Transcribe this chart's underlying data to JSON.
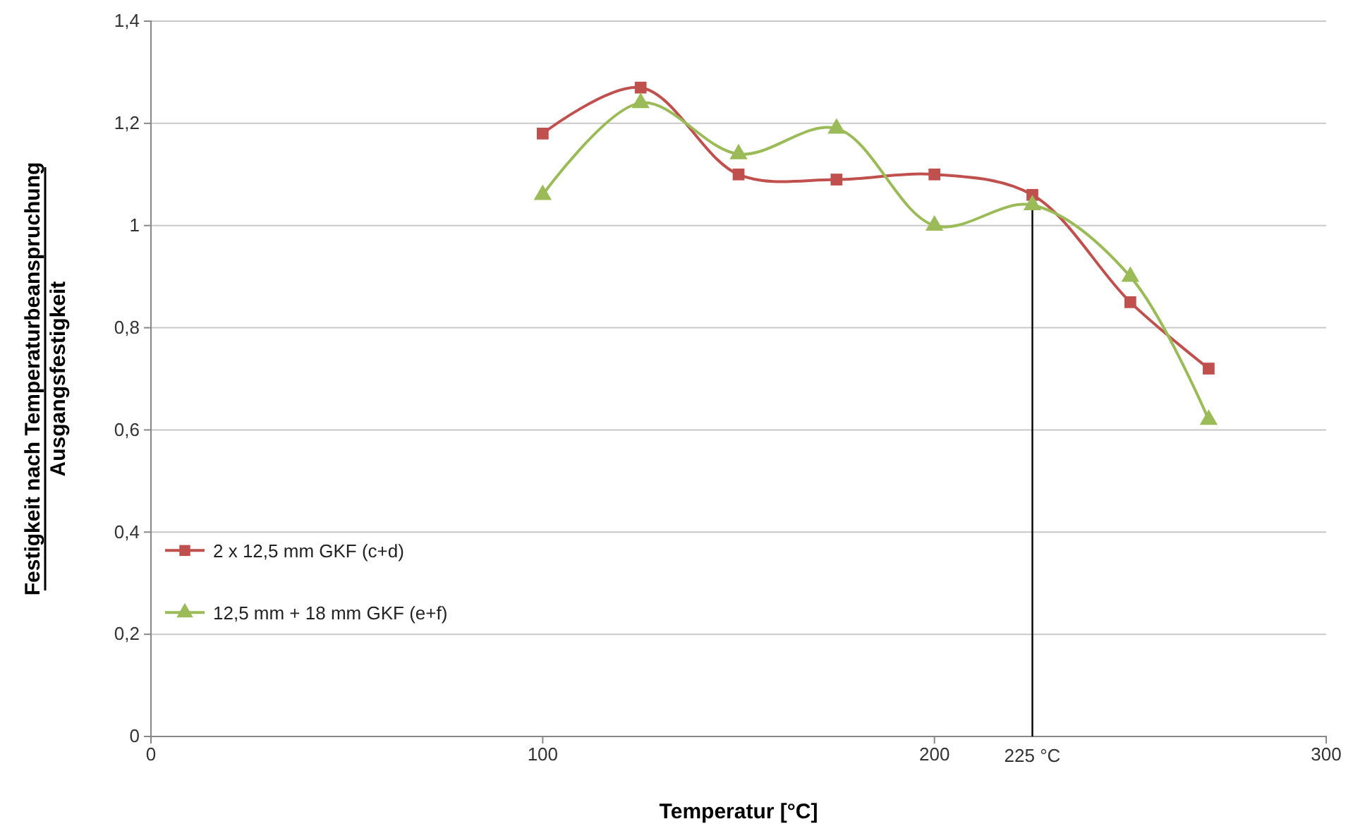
{
  "chart_data": {
    "type": "line",
    "xlabel": "Temperatur [°C]",
    "ylabel": "Festigkeit nach Temperaturbeanspruchung\nAusgangsfestigkeit",
    "xlim": [
      0,
      300
    ],
    "xticks": [
      0,
      100,
      200,
      300
    ],
    "ylim": [
      0,
      1.4
    ],
    "yticks": [
      0,
      {
        "value": 0.2,
        "label": "0,2"
      },
      {
        "value": 0.4,
        "label": "0,4"
      },
      {
        "value": 0.6,
        "label": "0,6"
      },
      {
        "value": 0.8,
        "label": "0,8"
      },
      1,
      {
        "value": 1.2,
        "label": "1,2"
      },
      {
        "value": 1.4,
        "label": "1,4"
      }
    ],
    "grid": "y",
    "legend": "left",
    "series": [
      {
        "name": "2 x 12,5 mm GKF (c+d)",
        "color": "#c0504d",
        "marker": "square",
        "x": [
          100,
          125,
          150,
          175,
          200,
          225,
          250,
          270
        ],
        "values": [
          1.18,
          1.27,
          1.1,
          1.09,
          1.1,
          1.06,
          0.85,
          0.72
        ]
      },
      {
        "name": "12,5 mm + 18 mm GKF (e+f)",
        "color": "#9bbb59",
        "marker": "triangle",
        "x": [
          100,
          125,
          150,
          175,
          200,
          225,
          250,
          270
        ],
        "values": [
          1.06,
          1.24,
          1.14,
          1.19,
          1.0,
          1.04,
          0.9,
          0.62
        ]
      }
    ],
    "ref_lines": [
      {
        "axis": "x",
        "value": 225,
        "label": "225 °C",
        "color": "#000000"
      }
    ]
  }
}
